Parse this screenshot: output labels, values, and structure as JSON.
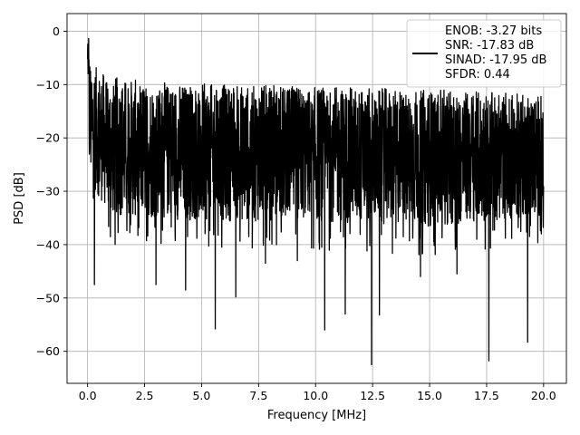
{
  "chart_data": {
    "type": "line",
    "title": "",
    "xlabel": "Frequency [MHz]",
    "ylabel": "PSD [dB]",
    "xlim": [
      -0.9,
      21.0
    ],
    "ylim": [
      -66.0,
      3.3
    ],
    "xticks": [
      0.0,
      2.5,
      5.0,
      7.5,
      10.0,
      12.5,
      15.0,
      17.5,
      20.0
    ],
    "xtick_labels": [
      "0.0",
      "2.5",
      "5.0",
      "7.5",
      "10.0",
      "12.5",
      "15.0",
      "17.5",
      "20.0"
    ],
    "yticks": [
      0,
      -10,
      -20,
      -30,
      -40,
      -50,
      -60
    ],
    "ytick_labels": [
      "0",
      "−10",
      "−20",
      "−30",
      "−40",
      "−50",
      "−60"
    ],
    "grid": true,
    "legend_placement": "top-right",
    "legend_lines": [
      "ENOB: -3.27 bits",
      "SNR: -17.83 dB",
      "SINAD: -17.95 dB",
      "SFDR: 0.44"
    ],
    "line_color": "#000000",
    "series": [
      {
        "x_range": [
          0.0,
          20.0
        ],
        "peak": [
          0.0,
          0.0
        ],
        "envelope_top": [
          [
            0.0,
            0.0
          ],
          [
            0.15,
            -8
          ],
          [
            0.5,
            -10
          ],
          [
            1.0,
            -11
          ],
          [
            2.5,
            -12
          ],
          [
            5.0,
            -12.5
          ],
          [
            10.0,
            -13
          ],
          [
            15.0,
            -13.5
          ],
          [
            20.0,
            -14.5
          ]
        ],
        "envelope_bottom": [
          [
            0.0,
            -29
          ],
          [
            1.0,
            -36
          ],
          [
            5.0,
            -37
          ],
          [
            10.0,
            -37
          ],
          [
            15.0,
            -38
          ],
          [
            20.0,
            -36
          ]
        ],
        "notable_dips": [
          [
            0.3,
            -47.5
          ],
          [
            1.0,
            -38.5
          ],
          [
            3.0,
            -47.5
          ],
          [
            4.3,
            -48.5
          ],
          [
            5.6,
            -55.8
          ],
          [
            6.5,
            -49.8
          ],
          [
            7.8,
            -43.5
          ],
          [
            9.2,
            -43.0
          ],
          [
            10.4,
            -56.0
          ],
          [
            11.3,
            -53.0
          ],
          [
            12.45,
            -62.5
          ],
          [
            12.8,
            -53.2
          ],
          [
            14.6,
            -46.0
          ],
          [
            16.2,
            -45.5
          ],
          [
            17.6,
            -61.8
          ],
          [
            19.3,
            -58.3
          ],
          [
            19.9,
            -38.0
          ]
        ]
      }
    ]
  }
}
